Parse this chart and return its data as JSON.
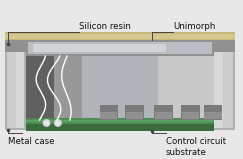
{
  "fig_width": 2.43,
  "fig_height": 1.59,
  "dpi": 100,
  "bg_color": "#e8e8e8",
  "labels": {
    "silicon_resin": "Silicon resin",
    "unimorph": "Unimorph",
    "metal_case": "Metal case",
    "control_circuit": "Control circuit\nsubstrate"
  },
  "colors": {
    "outer_walls": "#b0b0b0",
    "outer_walls_light": "#cccccc",
    "outer_walls_lighter": "#d8d8d8",
    "top_resin": "#c8b878",
    "top_resin_light": "#d4c890",
    "unimorph_bar_dark": "#909090",
    "unimorph_bar_mid": "#b8bec4",
    "unimorph_bar_light": "#d0d4d8",
    "inner_left": "#909090",
    "inner_right": "#c8c8c8",
    "inner_center": "#b0b4b8",
    "inner_dark_left": "#606060",
    "inner_mid": "#989898",
    "pcb_green_dark": "#3a6b3e",
    "pcb_green_mid": "#4e8c52",
    "pcb_green_light": "#5aa060",
    "component_gray": "#7a7a7a",
    "component_light": "#909090",
    "wire_white": "#ffffff",
    "wire_light": "#e8e8e8",
    "solder_ball": "#d0d0d0",
    "label_line": "#444444",
    "label_text": "#111111",
    "dot_dark": "#404040"
  },
  "font_size": 6.2,
  "font_size_small": 5.8
}
